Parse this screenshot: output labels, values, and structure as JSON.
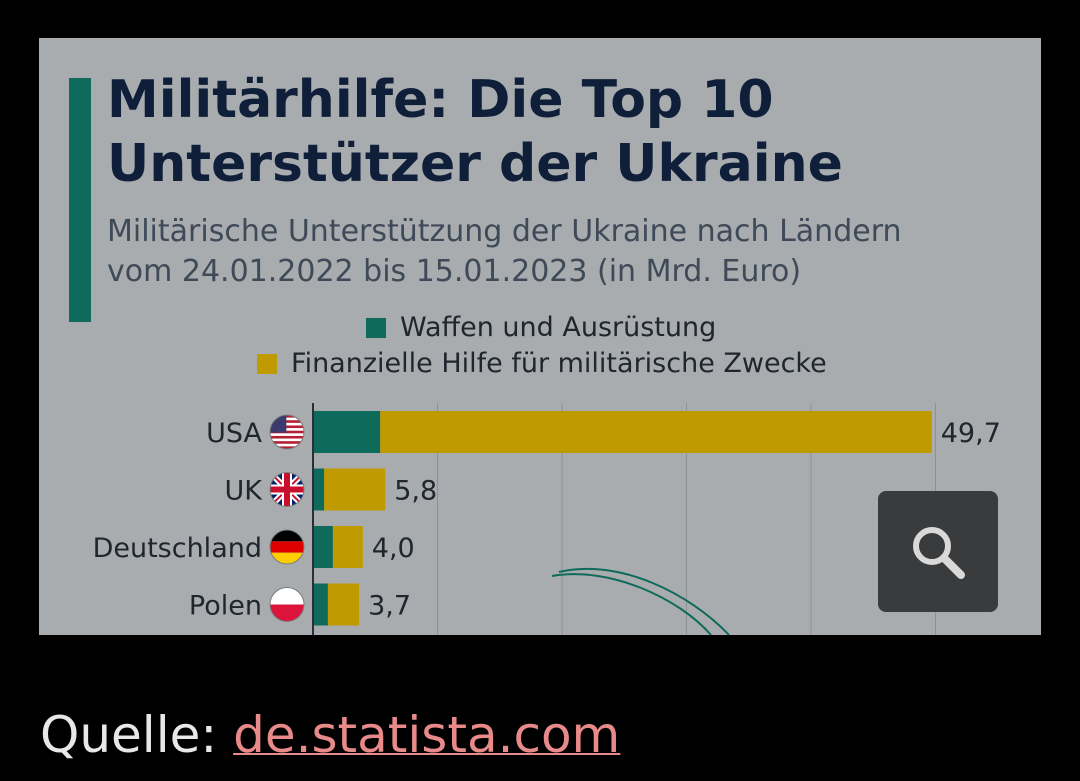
{
  "card": {
    "title_line1": "Militärhilfe: Die Top 10",
    "title_line2": "Unterstützer der Ukraine",
    "subtitle_line1": "Militärische Unterstützung der Ukraine nach Ländern",
    "subtitle_line2": "vom 24.01.2022 bis 15.01.2023 (in Mrd. Euro)",
    "accent_color": "#0e6b5c"
  },
  "legend": [
    {
      "label": "Waffen und Ausrüstung",
      "color": "#0e6b5c"
    },
    {
      "label": "Finanzielle Hilfe für militärische Zwecke",
      "color": "#bf9a00"
    }
  ],
  "chart_data": {
    "type": "bar",
    "orientation": "horizontal",
    "stacked": true,
    "categories": [
      "USA",
      "UK",
      "Deutschland",
      "Polen"
    ],
    "category_icons": [
      "us-flag-icon",
      "uk-flag-icon",
      "germany-flag-icon",
      "poland-flag-icon"
    ],
    "series": [
      {
        "name": "Waffen und Ausrüstung",
        "color": "#0e6b5c",
        "values": [
          5.4,
          0.9,
          1.6,
          1.2
        ]
      },
      {
        "name": "Finanzielle Hilfe für militärische Zwecke",
        "color": "#bf9a00",
        "values": [
          44.3,
          4.9,
          2.4,
          2.5
        ]
      }
    ],
    "totals": [
      "49,7",
      "5,8",
      "4,0",
      "3,7"
    ],
    "xlim": [
      0,
      50
    ],
    "grid": true
  },
  "zoom_button": {
    "icon": "magnifier-icon"
  },
  "source": {
    "label": "Quelle:",
    "link_text": "de.statista.com"
  }
}
